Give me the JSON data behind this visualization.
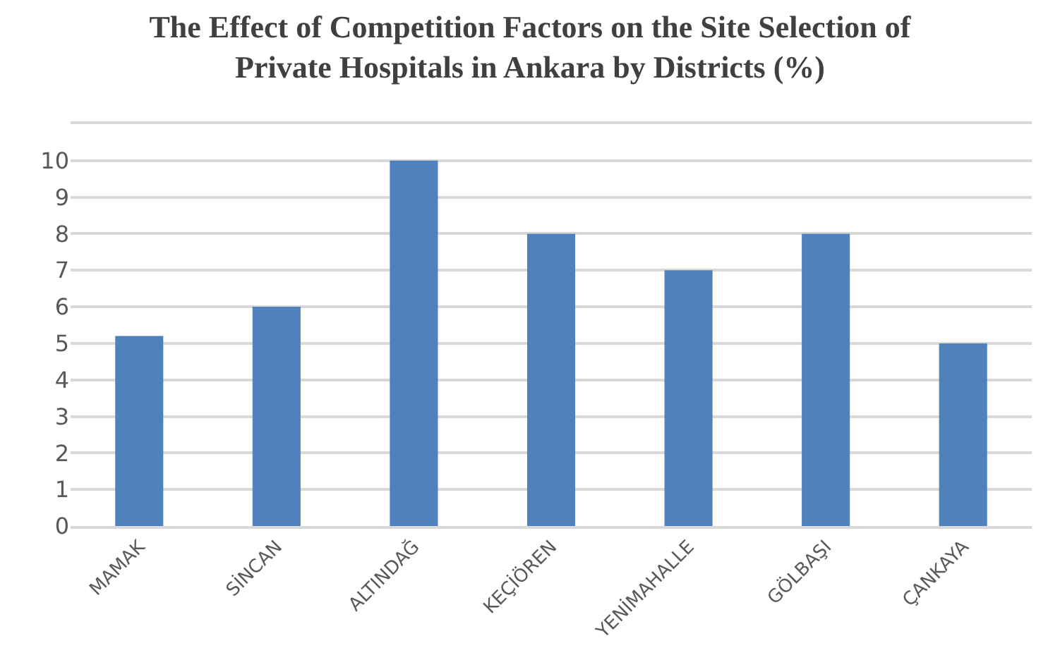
{
  "chart_data": {
    "type": "bar",
    "title": "The Effect of Competition Factors on the Site Selection of\nPrivate Hospitals in Ankara by Districts (%)",
    "categories": [
      "MAMAK",
      "SİNCAN",
      "ALTINDAĞ",
      "KEÇİÖREN",
      "YENİMAHALLE",
      "GÖLBAŞI",
      "ÇANKAYA"
    ],
    "values": [
      5.2,
      6,
      10,
      8,
      7,
      8,
      5
    ],
    "color": "#4f81bd",
    "ylim": [
      0,
      11
    ],
    "yticks": [
      0,
      1,
      2,
      3,
      4,
      5,
      6,
      7,
      8,
      9,
      10,
      {
        "value": 11,
        "label": null
      }
    ],
    "grid": "y"
  }
}
